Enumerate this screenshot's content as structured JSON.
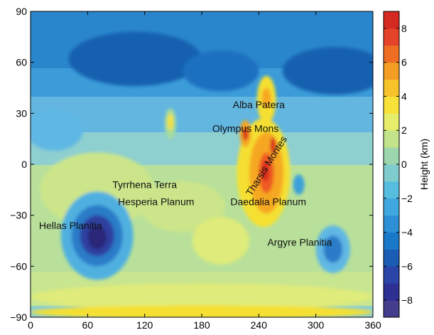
{
  "map": {
    "x_range": [
      0,
      360
    ],
    "y_range": [
      -90,
      90
    ],
    "x_ticks": [
      0,
      60,
      120,
      180,
      240,
      300,
      360
    ],
    "y_ticks": [
      -90,
      -60,
      -30,
      0,
      30,
      60,
      90
    ],
    "background_color": "#8ecfd0",
    "labels": [
      {
        "name": "alba-patera-label",
        "text": "Alba Patera",
        "lon": 240,
        "lat": 33,
        "rotate": 0
      },
      {
        "name": "olympus-mons-label",
        "text": "Olympus Mons",
        "lon": 226,
        "lat": 19,
        "rotate": 0
      },
      {
        "name": "tharsis-montes-label",
        "text": "Tharsis Montes",
        "lon": 251,
        "lat": -2,
        "rotate": -58
      },
      {
        "name": "tyrrhena-terra-label",
        "text": "Tyrrhena Terra",
        "lon": 120,
        "lat": -14,
        "rotate": 0
      },
      {
        "name": "hesperia-planum-label",
        "text": "Hesperia Planum",
        "lon": 132,
        "lat": -24,
        "rotate": 0
      },
      {
        "name": "daedalia-planum-label",
        "text": "Daedalia Planum",
        "lon": 250,
        "lat": -24,
        "rotate": 0
      },
      {
        "name": "hellas-planitia-label",
        "text": "Hellas Planitia",
        "lon": 42,
        "lat": -38,
        "rotate": 0
      },
      {
        "name": "argyre-planitia-label",
        "text": "Argyre Planitia",
        "lon": 283,
        "lat": -48,
        "rotate": 0
      }
    ],
    "features": [
      {
        "name": "northern-lowland-deep",
        "lon": 110,
        "lat": 62,
        "rlon": 70,
        "rlat": 16,
        "color": "#1560b0"
      },
      {
        "name": "northern-lowland-east",
        "lon": 320,
        "lat": 55,
        "rlon": 55,
        "rlat": 14,
        "color": "#1560b0"
      },
      {
        "name": "northern-lowland-mid",
        "lon": 200,
        "lat": 55,
        "rlon": 40,
        "rlat": 12,
        "color": "#1b70c0"
      },
      {
        "name": "arabia-terra",
        "lon": 25,
        "lat": 20,
        "rlon": 30,
        "rlat": 12,
        "color": "#5fb7e4"
      },
      {
        "name": "elysium-base",
        "lon": 147,
        "lat": 24,
        "rlon": 6,
        "rlat": 9,
        "color": "#a8dc9a"
      },
      {
        "name": "elysium-peak",
        "lon": 147,
        "lat": 25,
        "rlon": 3,
        "rlat": 5,
        "color": "#f5e030"
      },
      {
        "name": "southern-highlands-west",
        "lon": 70,
        "lat": -15,
        "rlon": 60,
        "rlat": 22,
        "color": "#cce58a"
      },
      {
        "name": "southern-highlands-east",
        "lon": 160,
        "lat": -25,
        "rlon": 45,
        "rlat": 15,
        "color": "#cce58a"
      },
      {
        "name": "terra-sirenum",
        "lon": 200,
        "lat": -45,
        "rlon": 30,
        "rlat": 14,
        "color": "#dfeb7a"
      },
      {
        "name": "south-polar-highland",
        "lon": 180,
        "lat": -78,
        "rlon": 180,
        "rlat": 8,
        "color": "#dfeb7a"
      },
      {
        "name": "south-polar-cap",
        "lon": 180,
        "lat": -87,
        "rlon": 180,
        "rlat": 4,
        "color": "#f5e030"
      },
      {
        "name": "tharsis-outer",
        "lon": 245,
        "lat": -5,
        "rlon": 28,
        "rlat": 32,
        "color": "#f5e030"
      },
      {
        "name": "tharsis-mid",
        "lon": 248,
        "lat": -5,
        "rlon": 18,
        "rlat": 24,
        "color": "#f6a722"
      },
      {
        "name": "tharsis-inner",
        "lon": 248,
        "lat": -5,
        "rlon": 8,
        "rlat": 12,
        "color": "#ee5a24"
      },
      {
        "name": "tharsis-core",
        "lon": 247,
        "lat": -4,
        "rlon": 4,
        "rlat": 6,
        "color": "#d82a1e"
      },
      {
        "name": "arsia-mons",
        "lon": 255,
        "lat": 11,
        "rlon": 3,
        "rlat": 5,
        "color": "#d82a1e"
      },
      {
        "name": "alba-outer",
        "lon": 248,
        "lat": 38,
        "rlon": 10,
        "rlat": 14,
        "color": "#f5e030"
      },
      {
        "name": "alba-inner",
        "lon": 248,
        "lat": 39,
        "rlon": 5,
        "rlat": 6,
        "color": "#f6a722"
      },
      {
        "name": "olympus-outer",
        "lon": 226,
        "lat": 18,
        "rlon": 6,
        "rlat": 8,
        "color": "#f6a722"
      },
      {
        "name": "olympus-inner",
        "lon": 226,
        "lat": 18,
        "rlon": 3,
        "rlat": 4,
        "color": "#d82a1e"
      },
      {
        "name": "valles-blue-spot",
        "lon": 282,
        "lat": -12,
        "rlon": 6,
        "rlat": 6,
        "color": "#3da0d8"
      },
      {
        "name": "hellas-ring",
        "lon": 70,
        "lat": -42,
        "rlon": 38,
        "rlat": 26,
        "color": "#4fb0e0"
      },
      {
        "name": "hellas-mid",
        "lon": 70,
        "lat": -42,
        "rlon": 27,
        "rlat": 18,
        "color": "#2a7cc8"
      },
      {
        "name": "hellas-inner",
        "lon": 70,
        "lat": -42,
        "rlon": 18,
        "rlat": 12,
        "color": "#2e40a0"
      },
      {
        "name": "hellas-core",
        "lon": 70,
        "lat": -43,
        "rlon": 10,
        "rlat": 7,
        "color": "#2a2878"
      },
      {
        "name": "argyre-outer",
        "lon": 318,
        "lat": -50,
        "rlon": 18,
        "rlat": 14,
        "color": "#5fb7e4"
      },
      {
        "name": "argyre-inner",
        "lon": 318,
        "lat": -50,
        "rlon": 10,
        "rlat": 8,
        "color": "#2a7cc8"
      }
    ]
  },
  "colorbar": {
    "label": "Height (km)",
    "range": [
      -9,
      9
    ],
    "ticks": [
      -8,
      -6,
      -4,
      -2,
      0,
      2,
      4,
      6,
      8
    ],
    "tick_labels": [
      "−8",
      "−6",
      "−4",
      "−2",
      "0",
      "2",
      "4",
      "6",
      "8"
    ],
    "colors": [
      "#443c8c",
      "#2e2f92",
      "#2a44a8",
      "#1b5cb4",
      "#1a78c8",
      "#2d8fd6",
      "#3fa8e0",
      "#56bde0",
      "#7ecccc",
      "#9cd6ac",
      "#c2e38a",
      "#e6ed6a",
      "#f8e23a",
      "#f7c22a",
      "#f39d24",
      "#ee6e24",
      "#e4432a",
      "#d52a22"
    ]
  }
}
